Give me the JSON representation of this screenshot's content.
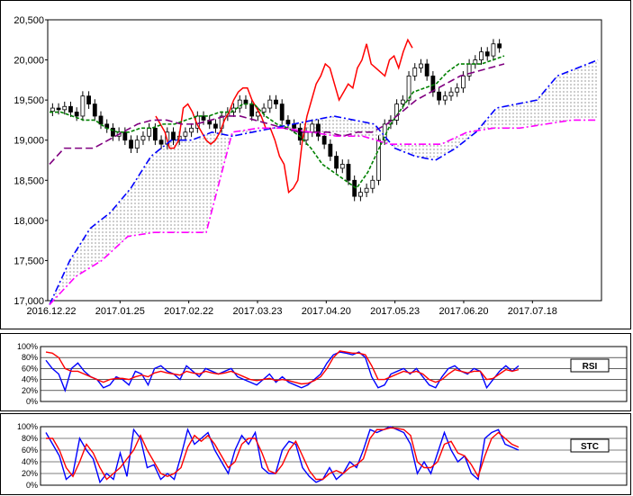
{
  "chart_data": [
    {
      "type": "candlestick",
      "title": "",
      "xlabel": "",
      "ylabel": "",
      "ylim": [
        17000,
        20500
      ],
      "yticks": [
        "17,000",
        "17,500",
        "18,000",
        "18,500",
        "19,000",
        "19,500",
        "20,000",
        "20,500"
      ],
      "xticks": [
        "2016.12.22",
        "2017.01.25",
        "2017.02.22",
        "2017.03.23",
        "2017.04.20",
        "2017.05.23",
        "2017.06.20",
        "2017.07.18"
      ],
      "grid": false,
      "candles_close": [
        19400,
        19380,
        19420,
        19350,
        19300,
        19550,
        19450,
        19300,
        19200,
        19150,
        19050,
        19100,
        19000,
        18900,
        19000,
        19050,
        19150,
        19000,
        18950,
        19100,
        19000,
        19050,
        19100,
        19150,
        19300,
        19250,
        19200,
        19150,
        19300,
        19350,
        19400,
        19500,
        19450,
        19300,
        19350,
        19400,
        19500,
        19450,
        19250,
        19200,
        19150,
        19000,
        19100,
        19200,
        19050,
        18950,
        18800,
        18650,
        18700,
        18500,
        18300,
        18350,
        18400,
        18500,
        19000,
        19200,
        19250,
        19450,
        19500,
        19800,
        19900,
        19950,
        19800,
        19600,
        19500,
        19550,
        19600,
        19650,
        19800,
        19950,
        20000,
        20100,
        20050,
        20200,
        20150
      ],
      "series": [
        {
          "name": "",
          "color": "#ff0000",
          "style": "solid",
          "values": [
            19300,
            19200,
            19100,
            18900,
            18900,
            19000,
            19400,
            19450,
            19350,
            19200,
            19100,
            19000,
            18950,
            19000,
            19100,
            19250,
            19350,
            19500,
            19600,
            19650,
            19650,
            19500,
            19400,
            19300,
            19150,
            19150,
            19000,
            18800,
            18700,
            18350,
            18400,
            18500,
            19000,
            19300,
            19500,
            19700,
            19800,
            19950,
            19900,
            19700,
            19500,
            19600,
            19700,
            19650,
            19900,
            20000,
            20200,
            19950,
            19900,
            19850,
            19800,
            20000,
            20050,
            19900,
            20100,
            20250,
            20150
          ]
        },
        {
          "name": "",
          "color": "#008000",
          "style": "dashed",
          "values": [
            19350,
            19350,
            19300,
            19250,
            19250,
            19150,
            19100,
            19100,
            19150,
            19150,
            19200,
            19200,
            19250,
            19300,
            19300,
            19350,
            19350,
            19450,
            19450,
            19300,
            19200,
            19150,
            19050,
            18900,
            18700,
            18600,
            18500,
            18400,
            18600,
            18900,
            19200,
            19400,
            19600,
            19650,
            19700,
            19850,
            19950,
            19950,
            19950,
            20000,
            20050
          ]
        },
        {
          "name": "",
          "color": "#800080",
          "style": "longdash",
          "values": [
            18700,
            18900,
            18900,
            18900,
            19000,
            19100,
            19200,
            19250,
            19250,
            19200,
            19200,
            19250,
            19300,
            19300,
            19250,
            19200,
            19150,
            19100,
            19100,
            19100,
            19050,
            19100,
            19100,
            19200,
            19350,
            19500,
            19600,
            19700,
            19800,
            19850,
            19900,
            19950
          ]
        },
        {
          "name": "",
          "color": "#0000ff",
          "style": "dashdot",
          "values": [
            16950,
            17500,
            17900,
            18100,
            18400,
            18800,
            19000,
            19000,
            19100,
            19050,
            19100,
            19150,
            19200,
            19250,
            19300,
            19250,
            19200,
            18900,
            18800,
            18750,
            18900,
            19100,
            19400,
            19450,
            19500,
            19800,
            19900,
            20000
          ]
        },
        {
          "name": "",
          "color": "#ff00ff",
          "style": "dashdot",
          "values": [
            16950,
            17300,
            17500,
            17800,
            17850,
            17850,
            17850,
            19100,
            19150,
            19150,
            19100,
            19050,
            19050,
            18950,
            18950,
            18950,
            19100,
            19150,
            19150,
            19200,
            19250,
            19250
          ]
        }
      ]
    },
    {
      "type": "line",
      "ylim": [
        0,
        100
      ],
      "yticks": [
        "100%",
        "80%",
        "60%",
        "40%",
        "20%",
        "0%"
      ],
      "grid": true,
      "legend": "RSI",
      "series": [
        {
          "name": "",
          "color": "#0000ff",
          "values": [
            75,
            60,
            50,
            20,
            60,
            70,
            55,
            45,
            40,
            25,
            30,
            45,
            40,
            30,
            55,
            50,
            30,
            60,
            65,
            55,
            50,
            40,
            65,
            55,
            45,
            60,
            55,
            50,
            55,
            60,
            45,
            40,
            35,
            30,
            40,
            50,
            35,
            45,
            35,
            30,
            25,
            30,
            40,
            50,
            70,
            85,
            90,
            88,
            85,
            90,
            80,
            45,
            25,
            30,
            50,
            55,
            60,
            50,
            60,
            45,
            30,
            25,
            45,
            60,
            65,
            55,
            50,
            60,
            55,
            25,
            40,
            55,
            65,
            55,
            65
          ]
        },
        {
          "name": "",
          "color": "#ff0000",
          "values": [
            90,
            88,
            80,
            60,
            55,
            55,
            50,
            45,
            40,
            35,
            40,
            42,
            42,
            40,
            45,
            48,
            45,
            52,
            55,
            52,
            50,
            48,
            55,
            52,
            50,
            55,
            52,
            50,
            52,
            55,
            50,
            45,
            40,
            38,
            40,
            42,
            38,
            40,
            38,
            35,
            32,
            33,
            38,
            45,
            60,
            80,
            92,
            90,
            88,
            88,
            85,
            65,
            40,
            40,
            45,
            50,
            55,
            52,
            55,
            50,
            40,
            35,
            40,
            50,
            58,
            55,
            52,
            55,
            55,
            40,
            42,
            50,
            58,
            55,
            58
          ]
        }
      ]
    },
    {
      "type": "line",
      "ylim": [
        0,
        100
      ],
      "yticks": [
        "100%",
        "80%",
        "60%",
        "40%",
        "20%",
        "0%"
      ],
      "grid": true,
      "legend": "STC",
      "series": [
        {
          "name": "",
          "color": "#0000ff",
          "values": [
            90,
            70,
            50,
            10,
            20,
            80,
            60,
            45,
            5,
            20,
            10,
            55,
            15,
            95,
            80,
            30,
            35,
            10,
            20,
            10,
            50,
            95,
            70,
            80,
            90,
            60,
            40,
            20,
            60,
            85,
            70,
            90,
            30,
            20,
            20,
            60,
            75,
            70,
            30,
            15,
            5,
            10,
            30,
            10,
            20,
            40,
            30,
            60,
            95,
            90,
            95,
            100,
            95,
            90,
            70,
            20,
            40,
            20,
            55,
            90,
            60,
            40,
            50,
            20,
            10,
            80,
            90,
            95,
            70,
            65,
            60
          ]
        },
        {
          "name": "",
          "color": "#ff0000",
          "values": [
            80,
            80,
            60,
            30,
            15,
            40,
            70,
            55,
            30,
            10,
            20,
            30,
            45,
            60,
            85,
            60,
            40,
            20,
            15,
            20,
            30,
            65,
            85,
            75,
            85,
            70,
            50,
            30,
            40,
            70,
            80,
            80,
            55,
            25,
            20,
            35,
            60,
            75,
            50,
            25,
            10,
            10,
            20,
            25,
            20,
            30,
            35,
            45,
            80,
            95,
            95,
            98,
            97,
            95,
            85,
            40,
            30,
            30,
            40,
            70,
            75,
            55,
            50,
            35,
            15,
            50,
            80,
            90,
            80,
            70,
            65
          ]
        }
      ]
    }
  ]
}
